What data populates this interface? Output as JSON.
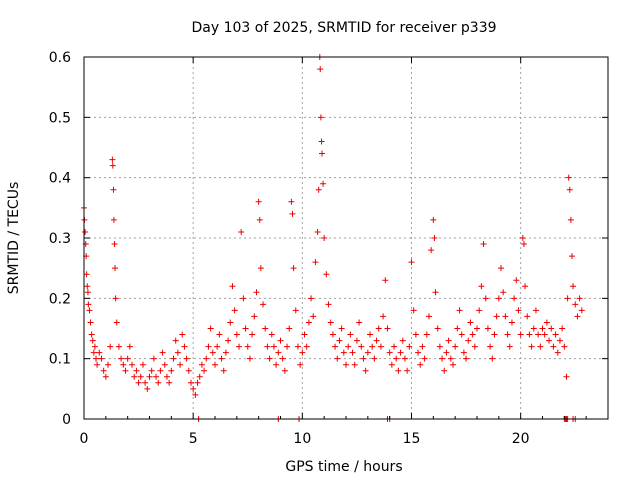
{
  "chart_data": {
    "type": "scatter",
    "title": "Day 103 of 2025, SRMTID for receiver p339",
    "xlabel": "GPS time / hours",
    "ylabel": "SRMTID / TECUs",
    "xlim": [
      0,
      24
    ],
    "ylim": [
      0,
      0.6
    ],
    "grid": true,
    "legend": "none",
    "marker": "+",
    "color": "#ee0000",
    "x_ticks": [
      0,
      5,
      10,
      15,
      20
    ],
    "x_tick_labels": [
      "0",
      "5",
      "10",
      "15",
      "20"
    ],
    "y_ticks": [
      0,
      0.1,
      0.2,
      0.3,
      0.4,
      0.5,
      0.6
    ],
    "y_tick_labels": [
      "0",
      "0.1",
      "0.2",
      "0.3",
      "0.4",
      "0.5",
      "0.6"
    ],
    "series": [
      {
        "name": "SRMTID",
        "points": [
          [
            0.0,
            0.35
          ],
          [
            0.02,
            0.33
          ],
          [
            0.05,
            0.31
          ],
          [
            0.08,
            0.29
          ],
          [
            0.1,
            0.27
          ],
          [
            0.12,
            0.24
          ],
          [
            0.15,
            0.22
          ],
          [
            0.18,
            0.21
          ],
          [
            0.2,
            0.19
          ],
          [
            0.25,
            0.18
          ],
          [
            0.3,
            0.16
          ],
          [
            0.35,
            0.14
          ],
          [
            0.4,
            0.13
          ],
          [
            0.45,
            0.11
          ],
          [
            0.5,
            0.12
          ],
          [
            0.55,
            0.1
          ],
          [
            0.6,
            0.09
          ],
          [
            0.7,
            0.11
          ],
          [
            0.8,
            0.1
          ],
          [
            0.9,
            0.08
          ],
          [
            1.0,
            0.07
          ],
          [
            1.1,
            0.09
          ],
          [
            1.2,
            0.12
          ],
          [
            1.3,
            0.43
          ],
          [
            1.32,
            0.42
          ],
          [
            1.35,
            0.38
          ],
          [
            1.37,
            0.33
          ],
          [
            1.4,
            0.29
          ],
          [
            1.42,
            0.25
          ],
          [
            1.45,
            0.2
          ],
          [
            1.5,
            0.16
          ],
          [
            1.6,
            0.12
          ],
          [
            1.7,
            0.1
          ],
          [
            1.8,
            0.09
          ],
          [
            1.9,
            0.08
          ],
          [
            2.0,
            0.1
          ],
          [
            2.1,
            0.12
          ],
          [
            2.2,
            0.09
          ],
          [
            2.3,
            0.07
          ],
          [
            2.4,
            0.08
          ],
          [
            2.5,
            0.06
          ],
          [
            2.6,
            0.07
          ],
          [
            2.7,
            0.09
          ],
          [
            2.8,
            0.06
          ],
          [
            2.9,
            0.05
          ],
          [
            3.0,
            0.07
          ],
          [
            3.1,
            0.08
          ],
          [
            3.2,
            0.1
          ],
          [
            3.3,
            0.07
          ],
          [
            3.4,
            0.06
          ],
          [
            3.5,
            0.08
          ],
          [
            3.6,
            0.11
          ],
          [
            3.7,
            0.09
          ],
          [
            3.8,
            0.07
          ],
          [
            3.9,
            0.06
          ],
          [
            4.0,
            0.08
          ],
          [
            4.1,
            0.1
          ],
          [
            4.2,
            0.13
          ],
          [
            4.3,
            0.11
          ],
          [
            4.4,
            0.09
          ],
          [
            4.5,
            0.14
          ],
          [
            4.6,
            0.12
          ],
          [
            4.7,
            0.1
          ],
          [
            4.8,
            0.08
          ],
          [
            4.9,
            0.06
          ],
          [
            5.0,
            0.05
          ],
          [
            5.1,
            0.04
          ],
          [
            5.2,
            0.06
          ],
          [
            5.3,
            0.07
          ],
          [
            5.4,
            0.09
          ],
          [
            5.5,
            0.08
          ],
          [
            5.6,
            0.1
          ],
          [
            5.7,
            0.12
          ],
          [
            5.8,
            0.15
          ],
          [
            5.9,
            0.11
          ],
          [
            6.0,
            0.09
          ],
          [
            6.1,
            0.12
          ],
          [
            6.2,
            0.14
          ],
          [
            6.3,
            0.1
          ],
          [
            6.4,
            0.08
          ],
          [
            6.5,
            0.11
          ],
          [
            6.6,
            0.13
          ],
          [
            6.7,
            0.16
          ],
          [
            6.8,
            0.22
          ],
          [
            6.9,
            0.18
          ],
          [
            7.0,
            0.14
          ],
          [
            7.1,
            0.12
          ],
          [
            7.2,
            0.31
          ],
          [
            7.3,
            0.2
          ],
          [
            7.4,
            0.15
          ],
          [
            7.5,
            0.12
          ],
          [
            7.6,
            0.1
          ],
          [
            7.7,
            0.14
          ],
          [
            7.8,
            0.17
          ],
          [
            7.9,
            0.21
          ],
          [
            8.0,
            0.36
          ],
          [
            8.05,
            0.33
          ],
          [
            8.1,
            0.25
          ],
          [
            8.2,
            0.19
          ],
          [
            8.3,
            0.15
          ],
          [
            8.4,
            0.12
          ],
          [
            8.5,
            0.1
          ],
          [
            8.6,
            0.14
          ],
          [
            8.7,
            0.12
          ],
          [
            8.8,
            0.09
          ],
          [
            8.9,
            0.11
          ],
          [
            9.0,
            0.13
          ],
          [
            9.1,
            0.1
          ],
          [
            9.2,
            0.08
          ],
          [
            9.3,
            0.12
          ],
          [
            9.4,
            0.15
          ],
          [
            9.5,
            0.36
          ],
          [
            9.55,
            0.34
          ],
          [
            9.6,
            0.25
          ],
          [
            9.7,
            0.18
          ],
          [
            9.8,
            0.12
          ],
          [
            9.9,
            0.09
          ],
          [
            10.0,
            0.11
          ],
          [
            10.1,
            0.14
          ],
          [
            10.2,
            0.12
          ],
          [
            10.3,
            0.16
          ],
          [
            10.4,
            0.2
          ],
          [
            10.5,
            0.17
          ],
          [
            10.6,
            0.26
          ],
          [
            10.7,
            0.31
          ],
          [
            10.75,
            0.38
          ],
          [
            10.8,
            0.6
          ],
          [
            10.82,
            0.58
          ],
          [
            10.85,
            0.5
          ],
          [
            10.88,
            0.46
          ],
          [
            10.9,
            0.44
          ],
          [
            10.95,
            0.39
          ],
          [
            11.0,
            0.3
          ],
          [
            11.1,
            0.24
          ],
          [
            11.2,
            0.19
          ],
          [
            11.3,
            0.16
          ],
          [
            11.4,
            0.14
          ],
          [
            11.5,
            0.12
          ],
          [
            11.6,
            0.1
          ],
          [
            11.7,
            0.13
          ],
          [
            11.8,
            0.15
          ],
          [
            11.9,
            0.11
          ],
          [
            12.0,
            0.09
          ],
          [
            12.1,
            0.12
          ],
          [
            12.2,
            0.14
          ],
          [
            12.3,
            0.11
          ],
          [
            12.4,
            0.09
          ],
          [
            12.5,
            0.13
          ],
          [
            12.6,
            0.16
          ],
          [
            12.7,
            0.12
          ],
          [
            12.8,
            0.1
          ],
          [
            12.9,
            0.08
          ],
          [
            13.0,
            0.11
          ],
          [
            13.1,
            0.14
          ],
          [
            13.2,
            0.12
          ],
          [
            13.3,
            0.1
          ],
          [
            13.4,
            0.13
          ],
          [
            13.5,
            0.15
          ],
          [
            13.6,
            0.12
          ],
          [
            13.7,
            0.17
          ],
          [
            13.8,
            0.23
          ],
          [
            13.9,
            0.15
          ],
          [
            14.0,
            0.11
          ],
          [
            14.1,
            0.09
          ],
          [
            14.2,
            0.12
          ],
          [
            14.3,
            0.1
          ],
          [
            14.4,
            0.08
          ],
          [
            14.5,
            0.11
          ],
          [
            14.6,
            0.13
          ],
          [
            14.7,
            0.1
          ],
          [
            14.8,
            0.08
          ],
          [
            14.9,
            0.12
          ],
          [
            15.0,
            0.26
          ],
          [
            15.1,
            0.18
          ],
          [
            15.2,
            0.14
          ],
          [
            15.3,
            0.11
          ],
          [
            15.4,
            0.09
          ],
          [
            15.5,
            0.12
          ],
          [
            15.6,
            0.1
          ],
          [
            15.7,
            0.14
          ],
          [
            15.8,
            0.17
          ],
          [
            15.9,
            0.28
          ],
          [
            16.0,
            0.33
          ],
          [
            16.05,
            0.3
          ],
          [
            16.1,
            0.21
          ],
          [
            16.2,
            0.15
          ],
          [
            16.3,
            0.12
          ],
          [
            16.4,
            0.1
          ],
          [
            16.5,
            0.08
          ],
          [
            16.6,
            0.11
          ],
          [
            16.7,
            0.13
          ],
          [
            16.8,
            0.1
          ],
          [
            16.9,
            0.09
          ],
          [
            17.0,
            0.12
          ],
          [
            17.1,
            0.15
          ],
          [
            17.2,
            0.18
          ],
          [
            17.3,
            0.14
          ],
          [
            17.4,
            0.11
          ],
          [
            17.5,
            0.1
          ],
          [
            17.6,
            0.13
          ],
          [
            17.7,
            0.16
          ],
          [
            17.8,
            0.14
          ],
          [
            17.9,
            0.12
          ],
          [
            18.0,
            0.15
          ],
          [
            18.1,
            0.18
          ],
          [
            18.2,
            0.22
          ],
          [
            18.3,
            0.29
          ],
          [
            18.4,
            0.2
          ],
          [
            18.5,
            0.15
          ],
          [
            18.6,
            0.12
          ],
          [
            18.7,
            0.1
          ],
          [
            18.8,
            0.14
          ],
          [
            18.9,
            0.17
          ],
          [
            19.0,
            0.2
          ],
          [
            19.1,
            0.25
          ],
          [
            19.2,
            0.21
          ],
          [
            19.3,
            0.17
          ],
          [
            19.4,
            0.14
          ],
          [
            19.5,
            0.12
          ],
          [
            19.6,
            0.16
          ],
          [
            19.7,
            0.2
          ],
          [
            19.8,
            0.23
          ],
          [
            19.9,
            0.18
          ],
          [
            20.0,
            0.14
          ],
          [
            20.1,
            0.3
          ],
          [
            20.15,
            0.29
          ],
          [
            20.2,
            0.22
          ],
          [
            20.3,
            0.17
          ],
          [
            20.4,
            0.14
          ],
          [
            20.5,
            0.12
          ],
          [
            20.6,
            0.15
          ],
          [
            20.7,
            0.18
          ],
          [
            20.8,
            0.14
          ],
          [
            20.9,
            0.12
          ],
          [
            21.0,
            0.15
          ],
          [
            21.1,
            0.14
          ],
          [
            21.2,
            0.16
          ],
          [
            21.3,
            0.13
          ],
          [
            21.4,
            0.15
          ],
          [
            21.5,
            0.12
          ],
          [
            21.6,
            0.14
          ],
          [
            21.7,
            0.11
          ],
          [
            21.8,
            0.13
          ],
          [
            21.9,
            0.15
          ],
          [
            22.0,
            0.12
          ],
          [
            22.1,
            0.07
          ],
          [
            22.15,
            0.2
          ],
          [
            22.2,
            0.4
          ],
          [
            22.25,
            0.38
          ],
          [
            22.3,
            0.33
          ],
          [
            22.35,
            0.27
          ],
          [
            22.4,
            0.22
          ],
          [
            22.5,
            0.19
          ],
          [
            22.6,
            0.17
          ],
          [
            22.7,
            0.2
          ],
          [
            22.8,
            0.18
          ],
          [
            5.25,
            0.0
          ],
          [
            8.9,
            0.0
          ],
          [
            9.85,
            0.0
          ],
          [
            13.9,
            0.0
          ],
          [
            14.0,
            0.0
          ],
          [
            22.0,
            0.0
          ],
          [
            22.05,
            0.0
          ],
          [
            22.1,
            0.0
          ],
          [
            22.15,
            0.0
          ],
          [
            22.4,
            0.0
          ],
          [
            22.5,
            0.0
          ]
        ]
      }
    ]
  }
}
